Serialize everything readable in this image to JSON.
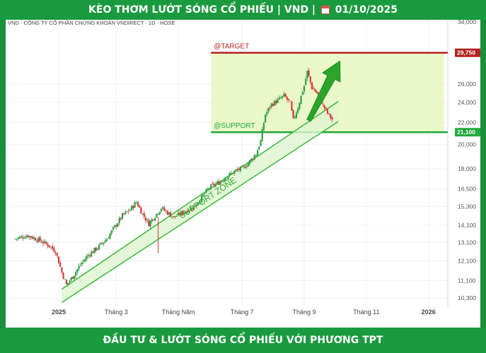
{
  "header": {
    "title_left": "KÈO THƠM LƯỚT SÓNG CỔ PHIẾU | VND |",
    "date": "01/10/2025",
    "calendar_icon": "calendar-icon"
  },
  "footer": {
    "text": "ĐẦU TƯ & LƯỚT SÓNG CỔ PHIẾU VỚI PHƯƠNG TPT"
  },
  "colors": {
    "banner": "#1a9a3e",
    "up": "#2ea043",
    "down": "#d63a3a",
    "target": "#b22222",
    "support": "#22a83a",
    "zone_fill": "#eaf7c8"
  },
  "chart_data": {
    "type": "candlestick",
    "title": "VND · CÔNG TY CỔ PHẦN CHỨNG KHOÁN VNDIRECT · 1D · HOSE",
    "yscale": "log",
    "ylim": [
      9900,
      34000
    ],
    "y_ticks": [
      {
        "value": 34000,
        "label": "34,000"
      },
      {
        "value": 26000,
        "label": "26,000"
      },
      {
        "value": 24000,
        "label": "24,000"
      },
      {
        "value": 22000,
        "label": "22,000"
      },
      {
        "value": 20000,
        "label": "20,000"
      },
      {
        "value": 18000,
        "label": "18,000"
      },
      {
        "value": 16500,
        "label": "16,500"
      },
      {
        "value": 15300,
        "label": "15,300"
      },
      {
        "value": 14100,
        "label": "14,100"
      },
      {
        "value": 13100,
        "label": "13,100"
      },
      {
        "value": 12100,
        "label": "12,100"
      },
      {
        "value": 11100,
        "label": "11,100"
      },
      {
        "value": 10300,
        "label": "10,300"
      }
    ],
    "x_ticks": [
      {
        "label": "2025",
        "t": 0.1,
        "bold": true
      },
      {
        "label": "Tháng 3",
        "t": 1.95,
        "bold": false
      },
      {
        "label": "Tháng Năm",
        "t": 3.95,
        "bold": false
      },
      {
        "label": "Tháng 7",
        "t": 6.0,
        "bold": false
      },
      {
        "label": "Tháng 9",
        "t": 8.0,
        "bold": false
      },
      {
        "label": "Tháng 11",
        "t": 10.0,
        "bold": false
      },
      {
        "label": "2026",
        "t": 12.0,
        "bold": true
      }
    ],
    "xlim": [
      -1.3,
      12.5
    ],
    "target": {
      "label": "@TARGET",
      "value": 29750,
      "price_label": "29,750"
    },
    "support": {
      "label": "@SUPPORT",
      "value": 21100,
      "price_label": "21,100"
    },
    "zone_box": {
      "t0": 5.0,
      "t1": 12.5
    },
    "channel": {
      "label": "SUPPORT ZONE",
      "upper": [
        [
          0.2,
          10700
        ],
        [
          9.1,
          24100
        ]
      ],
      "lower": [
        [
          0.2,
          10100
        ],
        [
          9.1,
          22100
        ]
      ]
    },
    "arrow": {
      "from": [
        8.15,
        22200
      ],
      "to": [
        9.15,
        28700
      ]
    },
    "anchors": [
      [
        -1.3,
        13300
      ],
      [
        -0.9,
        13500
      ],
      [
        -0.5,
        13200
      ],
      [
        -0.2,
        12900
      ],
      [
        0.0,
        12600
      ],
      [
        0.2,
        11500
      ],
      [
        0.35,
        10900
      ],
      [
        0.55,
        11300
      ],
      [
        0.8,
        11900
      ],
      [
        1.05,
        12400
      ],
      [
        1.35,
        12800
      ],
      [
        1.65,
        13300
      ],
      [
        1.9,
        14000
      ],
      [
        2.15,
        14700
      ],
      [
        2.4,
        15100
      ],
      [
        2.6,
        15600
      ],
      [
        2.8,
        14800
      ],
      [
        3.0,
        14200
      ],
      [
        3.2,
        14700
      ],
      [
        3.4,
        15200
      ],
      [
        3.6,
        14900
      ],
      [
        3.8,
        14600
      ],
      [
        4.0,
        14800
      ],
      [
        4.2,
        15000
      ],
      [
        4.45,
        15300
      ],
      [
        4.7,
        15900
      ],
      [
        4.95,
        16600
      ],
      [
        5.2,
        16900
      ],
      [
        5.45,
        17300
      ],
      [
        5.75,
        17800
      ],
      [
        6.05,
        18100
      ],
      [
        6.25,
        18600
      ],
      [
        6.45,
        19200
      ],
      [
        6.6,
        20300
      ],
      [
        6.75,
        22800
      ],
      [
        6.95,
        23800
      ],
      [
        7.15,
        24200
      ],
      [
        7.35,
        24700
      ],
      [
        7.55,
        23900
      ],
      [
        7.65,
        22200
      ],
      [
        7.8,
        23500
      ],
      [
        8.0,
        25800
      ],
      [
        8.1,
        27400
      ],
      [
        8.25,
        25600
      ],
      [
        8.45,
        24800
      ],
      [
        8.6,
        23700
      ],
      [
        8.75,
        22900
      ],
      [
        8.9,
        22300
      ]
    ]
  }
}
